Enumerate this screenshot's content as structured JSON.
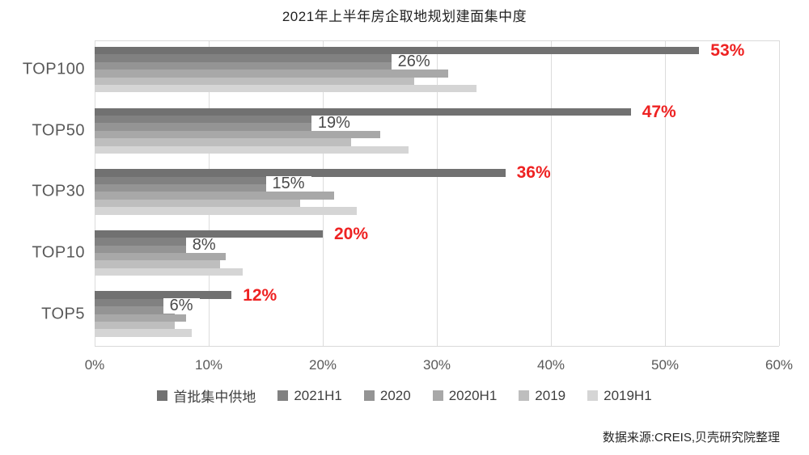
{
  "title": "2021年上半年房企取地规划建面集中度",
  "footer": {
    "source": "数据来源:CREIS,贝壳研究院整理"
  },
  "chart_data": {
    "type": "bar",
    "orientation": "horizontal",
    "title": "2021年上半年房企取地规划建面集中度",
    "categories": [
      "TOP100",
      "TOP50",
      "TOP30",
      "TOP10",
      "TOP5"
    ],
    "series": [
      {
        "name": "首批集中供地",
        "color": "#717171",
        "values": [
          53,
          47,
          36,
          20,
          12
        ]
      },
      {
        "name": "2021H1",
        "color": "#818181",
        "values": [
          26,
          19,
          15,
          8,
          6
        ]
      },
      {
        "name": "2020",
        "color": "#949494",
        "values": [
          29,
          20,
          16.5,
          9.5,
          7
        ]
      },
      {
        "name": "2020H1",
        "color": "#a8a8a8",
        "values": [
          31,
          25,
          21,
          11.5,
          8
        ]
      },
      {
        "name": "2019",
        "color": "#bebebe",
        "values": [
          28,
          22.5,
          18,
          11,
          7
        ]
      },
      {
        "name": "2019H1",
        "color": "#d5d5d5",
        "values": [
          33.5,
          27.5,
          23,
          13,
          8.5
        ]
      }
    ],
    "annotations": {
      "red_labels": [
        "53%",
        "47%",
        "36%",
        "20%",
        "12%"
      ],
      "boxed_labels": [
        "26%",
        "19%",
        "15%",
        "8%",
        "6%"
      ]
    },
    "x_axis": {
      "min": 0,
      "max": 60,
      "tick_labels": [
        "0%",
        "10%",
        "20%",
        "30%",
        "40%",
        "50%",
        "60%"
      ],
      "grid": true
    },
    "legend_position": "bottom",
    "colors": {
      "red_label": "#ee2222",
      "grid": "#dcdcdc",
      "axis_text": "#595959"
    }
  }
}
